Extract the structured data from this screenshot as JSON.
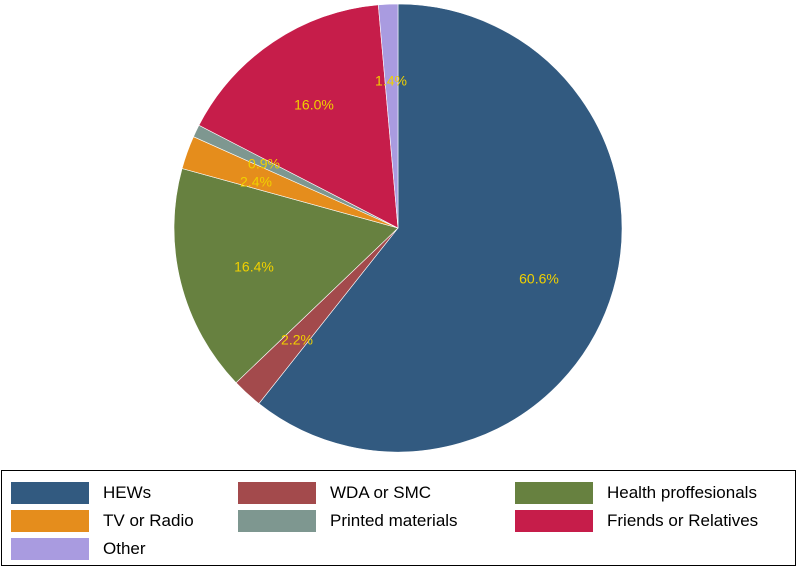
{
  "chart_data": {
    "type": "pie",
    "start_angle_deg": 0,
    "direction": "clockwise",
    "slices": [
      {
        "label": "HEWs",
        "value": 60.6,
        "value_label": "60.6%",
        "color": "#325a80"
      },
      {
        "label": "WDA or SMC",
        "value": 2.2,
        "value_label": "2.2%",
        "color": "#a34a4c"
      },
      {
        "label": "Health proffesionals",
        "value": 16.4,
        "value_label": "16.4%",
        "color": "#678140"
      },
      {
        "label": "TV or Radio",
        "value": 2.4,
        "value_label": "2.4%",
        "color": "#e58d1c"
      },
      {
        "label": "Printed materials",
        "value": 0.9,
        "value_label": "0.9%",
        "color": "#7e9790"
      },
      {
        "label": "Friends or Relatives",
        "value": 16.0,
        "value_label": "16.0%",
        "color": "#c61d4a"
      },
      {
        "label": "Other",
        "value": 1.4,
        "value_label": "1.4%",
        "color": "#a99be0"
      }
    ],
    "legend_position": "bottom"
  }
}
